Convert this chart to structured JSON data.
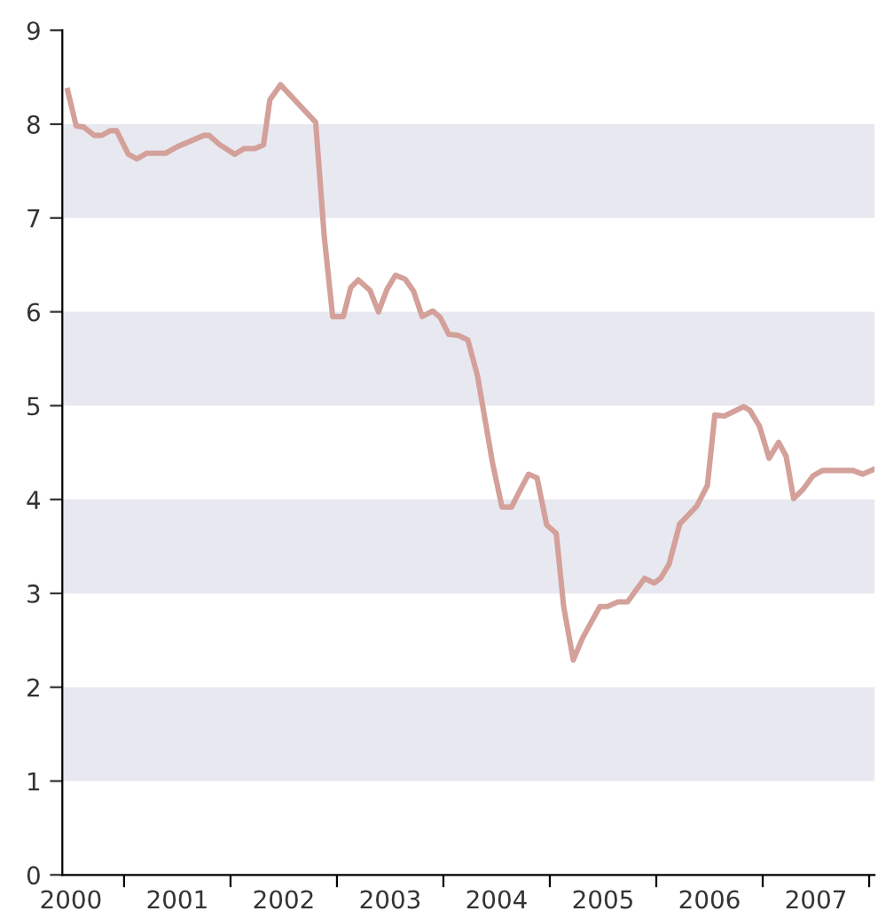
{
  "chart_data": {
    "type": "line",
    "x": [
      2000.47,
      2000.55,
      2000.62,
      2000.72,
      2000.79,
      2000.87,
      2000.93,
      2001.04,
      2001.12,
      2001.21,
      2001.39,
      2001.5,
      2001.75,
      2001.8,
      2001.9,
      2002.04,
      2002.13,
      2002.23,
      2002.31,
      2002.37,
      2002.47,
      2002.8,
      2002.88,
      2002.96,
      2003.06,
      2003.13,
      2003.2,
      2003.31,
      2003.39,
      2003.47,
      2003.55,
      2003.64,
      2003.72,
      2003.8,
      2003.9,
      2003.97,
      2004.05,
      2004.14,
      2004.23,
      2004.32,
      2004.46,
      2004.55,
      2004.64,
      2004.73,
      2004.8,
      2004.88,
      2004.97,
      2005.06,
      2005.13,
      2005.22,
      2005.31,
      2005.47,
      2005.54,
      2005.64,
      2005.73,
      2005.89,
      2005.98,
      2006.04,
      2006.12,
      2006.22,
      2006.38,
      2006.48,
      2006.55,
      2006.64,
      2006.82,
      2006.88,
      2006.97,
      2007.06,
      2007.15,
      2007.22,
      2007.29,
      2007.38,
      2007.47,
      2007.56,
      2007.85,
      2007.94,
      2008.04
    ],
    "series": [
      {
        "color": "#d4a09a",
        "values": [
          8.36,
          7.98,
          7.97,
          7.88,
          7.88,
          7.93,
          7.93,
          7.68,
          7.63,
          7.69,
          7.69,
          7.76,
          7.88,
          7.88,
          7.78,
          7.68,
          7.74,
          7.74,
          7.78,
          8.26,
          8.42,
          8.02,
          6.81,
          5.95,
          5.95,
          6.26,
          6.34,
          6.23,
          6.0,
          6.24,
          6.39,
          6.35,
          6.22,
          5.95,
          6.01,
          5.94,
          5.76,
          5.75,
          5.7,
          5.32,
          4.4,
          3.92,
          3.92,
          4.12,
          4.27,
          4.23,
          3.73,
          3.64,
          2.86,
          2.29,
          2.53,
          2.86,
          2.86,
          2.91,
          2.91,
          3.16,
          3.11,
          3.16,
          3.31,
          3.74,
          3.93,
          4.15,
          4.9,
          4.89,
          4.99,
          4.95,
          4.78,
          4.44,
          4.61,
          4.46,
          4.01,
          4.11,
          4.25,
          4.31,
          4.31,
          4.27,
          4.32
        ]
      }
    ],
    "xlim": [
      2000.42,
      2008.05
    ],
    "xticks": [
      {
        "value": 2001,
        "label": null
      },
      {
        "value": 2002,
        "label": null
      },
      {
        "value": 2003,
        "label": null
      },
      {
        "value": 2004,
        "label": null
      },
      {
        "value": 2005,
        "label": null
      },
      {
        "value": 2006,
        "label": null
      },
      {
        "value": 2007,
        "label": null
      },
      {
        "value": 2008,
        "label": null
      },
      {
        "value": 2000.5,
        "label": "2000"
      },
      {
        "value": 2001.5,
        "label": "2001"
      },
      {
        "value": 2002.5,
        "label": "2002"
      },
      {
        "value": 2003.5,
        "label": "2003"
      },
      {
        "value": 2004.5,
        "label": "2004"
      },
      {
        "value": 2005.5,
        "label": "2005"
      },
      {
        "value": 2006.5,
        "label": "2006"
      },
      {
        "value": 2007.5,
        "label": "2007"
      }
    ],
    "ylim": [
      0,
      9
    ],
    "yticks": [
      0,
      1,
      2,
      3,
      4,
      5,
      6,
      7,
      8,
      9
    ],
    "bands": [
      {
        "axis": "y",
        "from": 1,
        "to": 2,
        "color": "#e8e8f0"
      },
      {
        "axis": "y",
        "from": 3,
        "to": 4,
        "color": "#e8e8f0"
      },
      {
        "axis": "y",
        "from": 5,
        "to": 6,
        "color": "#e8e8f0"
      },
      {
        "axis": "y",
        "from": 7,
        "to": 8,
        "color": "#e8e8f0"
      }
    ],
    "grid": false,
    "legend": false,
    "marker": "none",
    "line_style": "solid"
  }
}
